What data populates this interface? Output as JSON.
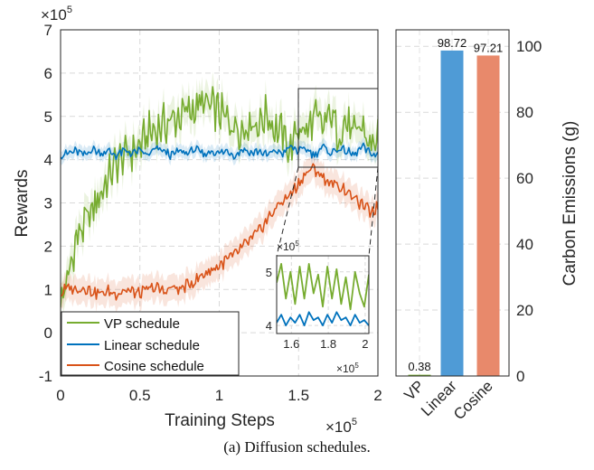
{
  "caption": "(a) Diffusion schedules.",
  "chart_data": [
    {
      "type": "line",
      "xlabel": "Training Steps",
      "ylabel": "Rewards",
      "x_exponent_label": "×10",
      "x_exponent": "5",
      "y_exponent_label": "×10",
      "y_exponent": "5",
      "xlim": [
        0,
        2
      ],
      "ylim": [
        -1,
        7
      ],
      "xticks": [
        "0",
        "0.5",
        "1",
        "1.5",
        "2"
      ],
      "yticks": [
        "-1",
        "0",
        "1",
        "2",
        "3",
        "4",
        "5",
        "6",
        "7"
      ],
      "grid": true,
      "legend_position": "bottom-left",
      "x": [
        0,
        0.05,
        0.1,
        0.15,
        0.2,
        0.25,
        0.3,
        0.35,
        0.4,
        0.45,
        0.5,
        0.55,
        0.6,
        0.65,
        0.7,
        0.75,
        0.8,
        0.85,
        0.9,
        0.95,
        1.0,
        1.05,
        1.1,
        1.15,
        1.2,
        1.25,
        1.3,
        1.35,
        1.4,
        1.45,
        1.5,
        1.55,
        1.6,
        1.65,
        1.7,
        1.75,
        1.8,
        1.85,
        1.9,
        1.95,
        2.0
      ],
      "series": [
        {
          "name": "VP schedule",
          "color": "#77ac30",
          "values": [
            0.7,
            1.3,
            2.2,
            2.5,
            2.8,
            3.2,
            3.6,
            3.9,
            4.1,
            4.2,
            4.3,
            4.6,
            4.7,
            4.8,
            4.9,
            5.0,
            5.1,
            5.2,
            5.3,
            5.2,
            5.1,
            4.9,
            4.8,
            4.7,
            4.9,
            4.8,
            5.1,
            4.7,
            4.6,
            4.2,
            4.8,
            4.6,
            5.0,
            4.7,
            5.1,
            4.6,
            4.9,
            4.5,
            4.8,
            4.3,
            4.5
          ],
          "band": 0.35
        },
        {
          "name": "Linear schedule",
          "color": "#0072bd",
          "values": [
            4.1,
            4.15,
            4.2,
            4.1,
            4.25,
            4.15,
            4.2,
            4.1,
            4.2,
            4.15,
            4.2,
            4.1,
            4.25,
            4.2,
            4.1,
            4.2,
            4.15,
            4.25,
            4.1,
            4.2,
            4.15,
            4.2,
            4.1,
            4.25,
            4.15,
            4.2,
            4.1,
            4.2,
            4.15,
            4.3,
            4.2,
            4.25,
            4.1,
            4.3,
            4.15,
            4.25,
            4.2,
            4.1,
            4.3,
            4.15,
            4.1
          ],
          "band": 0.15
        },
        {
          "name": "Cosine schedule",
          "color": "#d95319",
          "values": [
            0.9,
            1.05,
            1.0,
            1.05,
            0.95,
            0.9,
            0.95,
            0.9,
            1.0,
            0.95,
            0.9,
            1.0,
            1.05,
            0.95,
            1.05,
            1.0,
            1.1,
            1.2,
            1.35,
            1.45,
            1.55,
            1.7,
            1.8,
            2.0,
            2.15,
            2.35,
            2.6,
            2.85,
            3.05,
            3.2,
            3.45,
            3.7,
            3.8,
            3.6,
            3.45,
            3.4,
            3.3,
            3.1,
            2.95,
            2.8,
            2.9
          ],
          "band": 0.3
        }
      ],
      "inset": {
        "xlim": [
          1.52,
          2.02
        ],
        "ylim": [
          3.85,
          5.3
        ],
        "xticks": [
          "1.6",
          "1.8",
          "2"
        ],
        "yticks": [
          "4",
          "5"
        ],
        "x_exponent_label": "×10",
        "x_exponent": "5",
        "y_exponent_label": "×10",
        "y_exponent": "5",
        "vp_values": [
          4.8,
          5.15,
          4.5,
          5.0,
          4.4,
          5.1,
          4.5,
          5.15,
          4.6,
          4.95,
          4.35,
          5.1,
          4.5,
          5.05,
          4.4,
          4.9,
          4.3,
          5.0,
          4.6,
          4.35,
          4.95
        ],
        "linear_values": [
          4.05,
          4.2,
          4.0,
          4.15,
          4.05,
          4.2,
          4.0,
          4.25,
          4.1,
          4.15,
          4.0,
          4.2,
          4.05,
          4.25,
          4.1,
          4.15,
          4.0,
          4.2,
          4.05,
          4.1,
          4.0
        ]
      }
    },
    {
      "type": "bar",
      "categories": [
        "VP",
        "Linear",
        "Cosine"
      ],
      "values": [
        0.38,
        98.72,
        97.21
      ],
      "value_labels": [
        "0.38",
        "98.72",
        "97.21"
      ],
      "colors": [
        "#77ac30",
        "#4f9bd6",
        "#e8896b"
      ],
      "ylabel": "Carbon Emissions (g)",
      "ylim": [
        0,
        105
      ],
      "yticks": [
        "0",
        "20",
        "40",
        "60",
        "80",
        "100"
      ],
      "yaxis_position": "right",
      "grid": true
    }
  ]
}
